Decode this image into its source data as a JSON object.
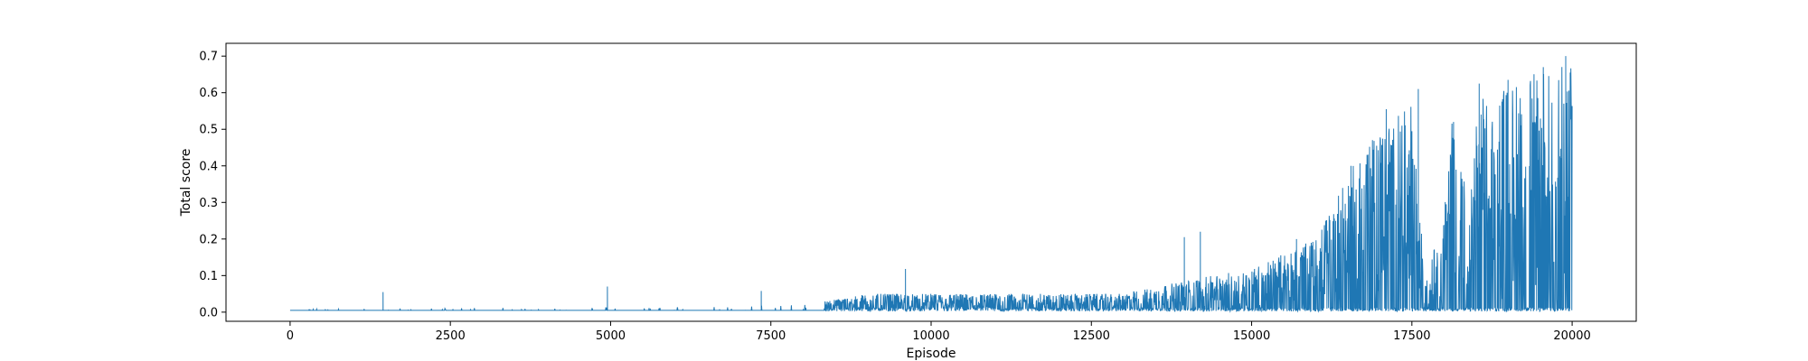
{
  "chart_data": {
    "type": "line",
    "title": "",
    "xlabel": "Episode",
    "ylabel": "Total score",
    "xlim": [
      -1000,
      21000
    ],
    "ylim": [
      -0.025,
      0.735
    ],
    "xticks": [
      0,
      2500,
      5000,
      7500,
      10000,
      12500,
      15000,
      17500,
      20000
    ],
    "xtick_labels": [
      "0",
      "2500",
      "5000",
      "7500",
      "10000",
      "12500",
      "15000",
      "17500",
      "20000"
    ],
    "yticks": [
      0.0,
      0.1,
      0.2,
      0.3,
      0.4,
      0.5,
      0.6,
      0.7
    ],
    "ytick_labels": [
      "0.0",
      "0.1",
      "0.2",
      "0.3",
      "0.4",
      "0.5",
      "0.6",
      "0.7"
    ],
    "grid": false,
    "legend": false,
    "color": "#1f77b4",
    "n_episodes": 20000,
    "baseline": 0.005,
    "notable_peaks": [
      {
        "x": 1450,
        "y": 0.055
      },
      {
        "x": 4950,
        "y": 0.07
      },
      {
        "x": 7350,
        "y": 0.058
      },
      {
        "x": 9600,
        "y": 0.118
      },
      {
        "x": 13950,
        "y": 0.205
      },
      {
        "x": 14200,
        "y": 0.22
      },
      {
        "x": 15700,
        "y": 0.2
      },
      {
        "x": 16550,
        "y": 0.4
      },
      {
        "x": 16800,
        "y": 0.43
      },
      {
        "x": 17100,
        "y": 0.555
      },
      {
        "x": 17600,
        "y": 0.61
      },
      {
        "x": 18150,
        "y": 0.52
      },
      {
        "x": 18550,
        "y": 0.625
      },
      {
        "x": 19000,
        "y": 0.635
      },
      {
        "x": 19550,
        "y": 0.67
      },
      {
        "x": 19900,
        "y": 0.7
      }
    ],
    "envelope": [
      {
        "x": 0,
        "max": 0.01,
        "min": 0.002
      },
      {
        "x": 4000,
        "max": 0.012,
        "min": 0.002
      },
      {
        "x": 8000,
        "max": 0.02,
        "min": 0.002
      },
      {
        "x": 9000,
        "max": 0.05,
        "min": 0.002
      },
      {
        "x": 11000,
        "max": 0.05,
        "min": 0.002
      },
      {
        "x": 13000,
        "max": 0.05,
        "min": 0.002
      },
      {
        "x": 13500,
        "max": 0.07,
        "min": 0.002
      },
      {
        "x": 15000,
        "max": 0.12,
        "min": 0.002
      },
      {
        "x": 16000,
        "max": 0.2,
        "min": 0.002
      },
      {
        "x": 16500,
        "max": 0.38,
        "min": 0.002
      },
      {
        "x": 17000,
        "max": 0.5,
        "min": 0.002
      },
      {
        "x": 17500,
        "max": 0.57,
        "min": 0.002
      },
      {
        "x": 17700,
        "max": 0.1,
        "min": 0.002
      },
      {
        "x": 18000,
        "max": 0.25,
        "min": 0.002
      },
      {
        "x": 18100,
        "max": 0.52,
        "min": 0.002
      },
      {
        "x": 18300,
        "max": 0.5,
        "min": 0.002
      },
      {
        "x": 18350,
        "max": 0.07,
        "min": 0.002
      },
      {
        "x": 18500,
        "max": 0.58,
        "min": 0.002
      },
      {
        "x": 19000,
        "max": 0.62,
        "min": 0.002
      },
      {
        "x": 19500,
        "max": 0.66,
        "min": 0.002
      },
      {
        "x": 20000,
        "max": 0.68,
        "min": 0.002
      }
    ]
  }
}
